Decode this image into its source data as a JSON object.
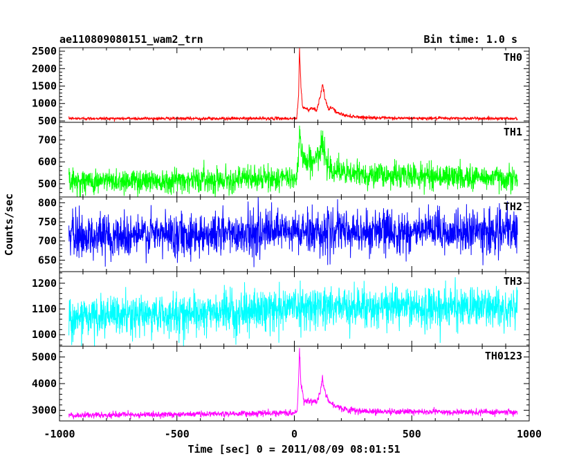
{
  "header": {
    "title": "ae110809080151_wam2_trn",
    "bin_time": "Bin time: 1.0 s"
  },
  "axes": {
    "ylabel": "Counts/sec",
    "xlabel": "Time [sec] 0 = 2011/08/09 08:01:51"
  },
  "chart_data": {
    "type": "line",
    "title": "ae110809080151_wam2_trn",
    "xlabel": "Time [sec] 0 = 2011/08/09 08:01:51",
    "ylabel": "Counts/sec",
    "xlim": [
      -1000,
      1000
    ],
    "x_ticks": [
      "-1000",
      "-500",
      "0",
      "500",
      "1000"
    ],
    "data_x_range": [
      -960,
      950
    ],
    "panels": [
      {
        "name": "TH0",
        "color": "#ff0000",
        "ylim": [
          460,
          2600
        ],
        "y_ticks": [
          500,
          1000,
          1500,
          2000,
          2500
        ],
        "baseline": 570,
        "noise": 22,
        "trend": 0,
        "profile": [
          [
            -960,
            570
          ],
          [
            10,
            570
          ],
          [
            18,
            1200
          ],
          [
            22,
            2600
          ],
          [
            28,
            1500
          ],
          [
            35,
            900
          ],
          [
            60,
            820
          ],
          [
            80,
            880
          ],
          [
            95,
            800
          ],
          [
            110,
            1200
          ],
          [
            120,
            1550
          ],
          [
            130,
            1150
          ],
          [
            145,
            820
          ],
          [
            160,
            900
          ],
          [
            180,
            740
          ],
          [
            220,
            650
          ],
          [
            300,
            600
          ],
          [
            400,
            580
          ],
          [
            950,
            570
          ]
        ]
      },
      {
        "name": "TH1",
        "color": "#00ff00",
        "ylim": [
          440,
          780
        ],
        "y_ticks": [
          500,
          600,
          700
        ],
        "baseline": 515,
        "noise": 28,
        "trend": 15,
        "profile": [
          [
            -960,
            510
          ],
          [
            0,
            525
          ],
          [
            15,
            560
          ],
          [
            22,
            770
          ],
          [
            30,
            640
          ],
          [
            50,
            600
          ],
          [
            90,
            610
          ],
          [
            110,
            640
          ],
          [
            120,
            690
          ],
          [
            135,
            610
          ],
          [
            160,
            570
          ],
          [
            220,
            545
          ],
          [
            950,
            525
          ]
        ]
      },
      {
        "name": "TH2",
        "color": "#0000ff",
        "ylim": [
          620,
          815
        ],
        "y_ticks": [
          650,
          700,
          750,
          800
        ],
        "baseline": 718,
        "noise": 28,
        "trend": 12,
        "profile": [
          [
            -960,
            712
          ],
          [
            0,
            724
          ],
          [
            950,
            724
          ]
        ]
      },
      {
        "name": "TH3",
        "color": "#00ffff",
        "ylim": [
          955,
          1245
        ],
        "y_ticks": [
          1000,
          1100,
          1200
        ],
        "baseline": 1085,
        "noise": 38,
        "trend": 20,
        "profile": [
          [
            -960,
            1065
          ],
          [
            -200,
            1090
          ],
          [
            0,
            1110
          ],
          [
            950,
            1105
          ]
        ]
      },
      {
        "name": "TH0123",
        "color": "#ff00ff",
        "ylim": [
          2600,
          5400
        ],
        "y_ticks": [
          3000,
          4000,
          5000
        ],
        "baseline": 2850,
        "noise": 55,
        "trend": 40,
        "profile": [
          [
            -960,
            2800
          ],
          [
            0,
            2900
          ],
          [
            12,
            2950
          ],
          [
            18,
            4200
          ],
          [
            22,
            5350
          ],
          [
            28,
            4000
          ],
          [
            40,
            3350
          ],
          [
            80,
            3350
          ],
          [
            95,
            3300
          ],
          [
            110,
            3700
          ],
          [
            120,
            4250
          ],
          [
            130,
            3700
          ],
          [
            150,
            3300
          ],
          [
            180,
            3150
          ],
          [
            230,
            3000
          ],
          [
            350,
            2950
          ],
          [
            950,
            2920
          ]
        ]
      }
    ]
  }
}
